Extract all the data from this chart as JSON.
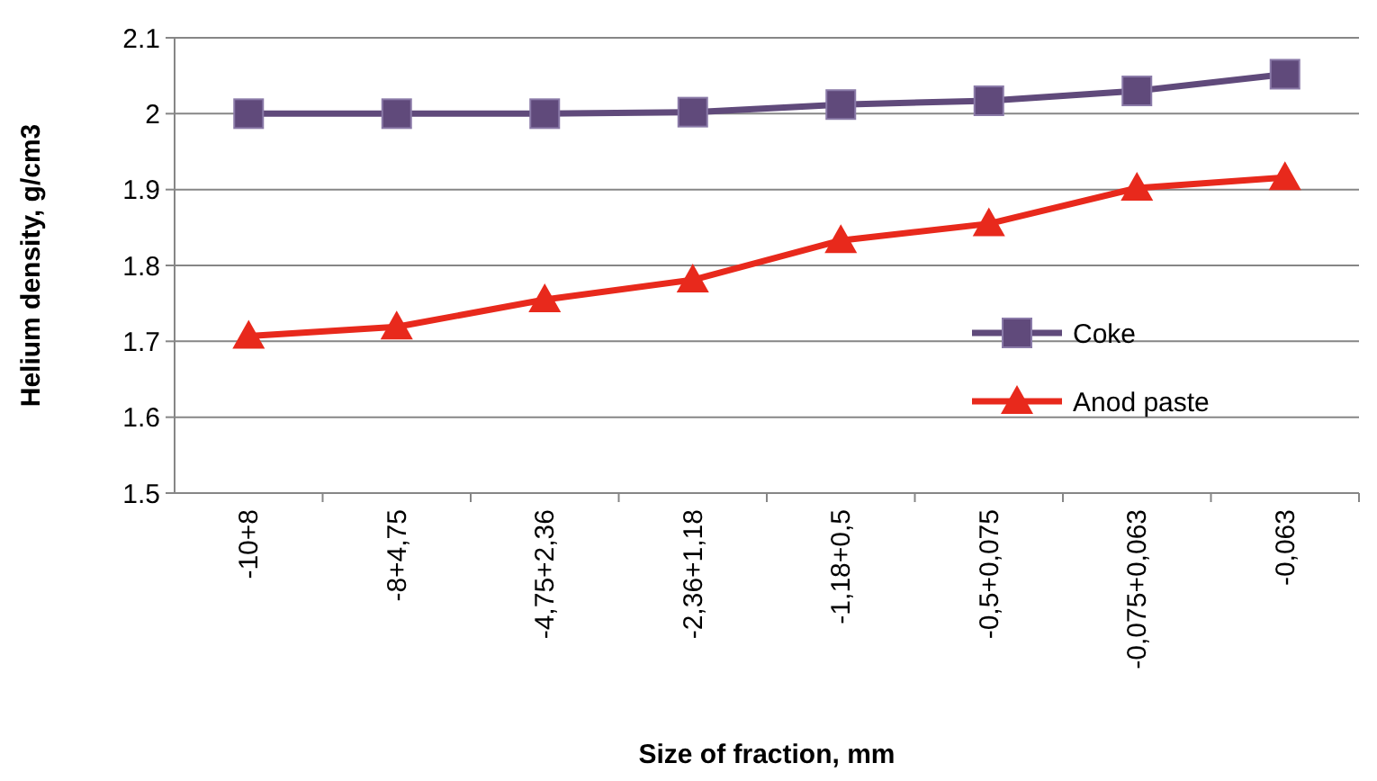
{
  "chart_data": {
    "type": "line",
    "xlabel": "Size of fraction, mm",
    "ylabel": "Helium density, g/cm3",
    "categories": [
      "-10+8",
      "-8+4,75",
      "-4,75+2,36",
      "-2,36+1,18",
      "-1,18+0,5",
      "-0,5+0,075",
      "-0,075+0,063",
      "-0,063"
    ],
    "series": [
      {
        "name": "Coke",
        "color": "#604a7b",
        "marker": "square",
        "values": [
          2.0,
          2.0,
          2.0,
          2.002,
          2.012,
          2.017,
          2.03,
          2.052
        ]
      },
      {
        "name": "Anod paste",
        "color": "#e8291c",
        "marker": "triangle",
        "values": [
          1.707,
          1.719,
          1.755,
          1.781,
          1.833,
          1.855,
          1.902,
          1.916
        ]
      }
    ],
    "ylim": [
      1.5,
      2.1
    ],
    "yticks": [
      1.5,
      1.6,
      1.7,
      1.8,
      1.9,
      2,
      2.1
    ],
    "grid": "y",
    "legend": "right",
    "line_style": "solid"
  }
}
